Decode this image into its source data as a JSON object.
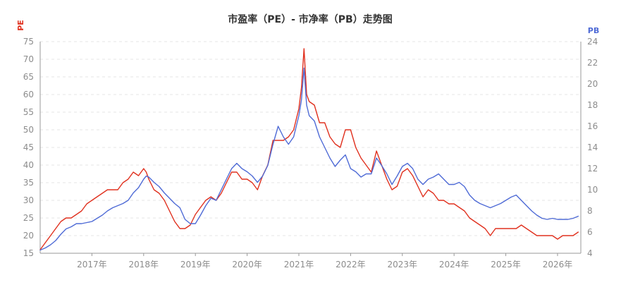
{
  "chart_data": {
    "type": "line",
    "title": "市盈率（PE）- 市净率（PB）走势图",
    "ylabel_left": "PE",
    "ylabel_right": "PB",
    "ylim_left": [
      15,
      75
    ],
    "ylim_right": [
      4,
      24
    ],
    "yticks_left": [
      15,
      20,
      25,
      30,
      35,
      40,
      45,
      50,
      55,
      60,
      65,
      70,
      75
    ],
    "yticks_right": [
      4,
      6,
      8,
      10,
      12,
      14,
      16,
      18,
      20,
      22,
      24
    ],
    "xlim": [
      2016.0,
      2026.45
    ],
    "xticks": [
      {
        "x": 2017.0,
        "label": "2017年"
      },
      {
        "x": 2018.0,
        "label": "2018年"
      },
      {
        "x": 2019.0,
        "label": "2019年"
      },
      {
        "x": 2020.0,
        "label": "2020年"
      },
      {
        "x": 2021.0,
        "label": "2021年"
      },
      {
        "x": 2022.0,
        "label": "2022年"
      },
      {
        "x": 2023.0,
        "label": "2023年"
      },
      {
        "x": 2024.0,
        "label": "2024年"
      },
      {
        "x": 2025.0,
        "label": "2025年"
      },
      {
        "x": 2026.0,
        "label": "2026年"
      }
    ],
    "grid": true,
    "series": [
      {
        "name": "PE",
        "axis": "left",
        "color": "#e0301e",
        "x": [
          2016.0,
          2016.1,
          2016.2,
          2016.3,
          2016.4,
          2016.5,
          2016.6,
          2016.7,
          2016.8,
          2016.9,
          2017.0,
          2017.1,
          2017.2,
          2017.3,
          2017.4,
          2017.5,
          2017.6,
          2017.7,
          2017.8,
          2017.9,
          2018.0,
          2018.05,
          2018.1,
          2018.2,
          2018.3,
          2018.4,
          2018.5,
          2018.6,
          2018.7,
          2018.8,
          2018.9,
          2019.0,
          2019.1,
          2019.2,
          2019.3,
          2019.4,
          2019.5,
          2019.6,
          2019.7,
          2019.8,
          2019.9,
          2020.0,
          2020.1,
          2020.2,
          2020.3,
          2020.4,
          2020.5,
          2020.6,
          2020.7,
          2020.8,
          2020.9,
          2021.0,
          2021.05,
          2021.1,
          2021.15,
          2021.2,
          2021.3,
          2021.4,
          2021.5,
          2021.6,
          2021.7,
          2021.8,
          2021.9,
          2022.0,
          2022.1,
          2022.2,
          2022.3,
          2022.4,
          2022.5,
          2022.6,
          2022.7,
          2022.8,
          2022.9,
          2023.0,
          2023.1,
          2023.2,
          2023.3,
          2023.4,
          2023.5,
          2023.6,
          2023.7,
          2023.8,
          2023.9,
          2024.0,
          2024.1,
          2024.2,
          2024.3,
          2024.4,
          2024.5,
          2024.6,
          2024.7,
          2024.8,
          2024.9,
          2025.0,
          2025.1,
          2025.2,
          2025.3,
          2025.4,
          2025.5,
          2025.6,
          2025.7,
          2025.8,
          2025.9,
          2026.0,
          2026.1,
          2026.2,
          2026.3,
          2026.4
        ],
        "values": [
          16,
          18,
          20,
          22,
          24,
          25,
          25,
          26,
          27,
          29,
          30,
          31,
          32,
          33,
          33,
          33,
          35,
          36,
          38,
          37,
          39,
          38,
          36,
          33,
          32,
          30,
          27,
          24,
          22,
          22,
          23,
          26,
          28,
          30,
          31,
          30,
          32,
          35,
          38,
          38,
          36,
          36,
          35,
          33,
          37,
          40,
          47,
          47,
          47,
          48,
          50,
          56,
          62,
          73,
          60,
          58,
          57,
          52,
          52,
          48,
          46,
          45,
          50,
          50,
          45,
          42,
          40,
          38,
          44,
          40,
          36,
          33,
          34,
          38,
          39,
          37,
          34,
          31,
          33,
          32,
          30,
          30,
          29,
          29,
          28,
          27,
          25,
          24,
          23,
          22,
          20,
          22,
          22,
          22,
          22,
          22,
          23,
          22,
          21,
          20,
          20,
          20,
          20,
          19,
          20,
          20,
          20,
          21
        ]
      },
      {
        "name": "PB",
        "axis": "right",
        "color": "#4f6bd6",
        "x": [
          2016.0,
          2016.1,
          2016.2,
          2016.3,
          2016.4,
          2016.5,
          2016.6,
          2016.7,
          2016.8,
          2016.9,
          2017.0,
          2017.1,
          2017.2,
          2017.3,
          2017.4,
          2017.5,
          2017.6,
          2017.7,
          2017.8,
          2017.9,
          2018.0,
          2018.05,
          2018.1,
          2018.2,
          2018.3,
          2018.4,
          2018.5,
          2018.6,
          2018.7,
          2018.8,
          2018.9,
          2019.0,
          2019.1,
          2019.2,
          2019.3,
          2019.4,
          2019.5,
          2019.6,
          2019.7,
          2019.8,
          2019.9,
          2020.0,
          2020.1,
          2020.2,
          2020.3,
          2020.4,
          2020.5,
          2020.6,
          2020.7,
          2020.8,
          2020.9,
          2021.0,
          2021.05,
          2021.1,
          2021.15,
          2021.2,
          2021.3,
          2021.4,
          2021.5,
          2021.6,
          2021.7,
          2021.8,
          2021.9,
          2022.0,
          2022.1,
          2022.2,
          2022.3,
          2022.4,
          2022.5,
          2022.6,
          2022.7,
          2022.8,
          2022.9,
          2023.0,
          2023.1,
          2023.2,
          2023.3,
          2023.4,
          2023.5,
          2023.6,
          2023.7,
          2023.8,
          2023.9,
          2024.0,
          2024.1,
          2024.2,
          2024.3,
          2024.4,
          2024.5,
          2024.6,
          2024.7,
          2024.8,
          2024.9,
          2025.0,
          2025.1,
          2025.2,
          2025.3,
          2025.4,
          2025.5,
          2025.6,
          2025.7,
          2025.8,
          2025.9,
          2026.0,
          2026.1,
          2026.2,
          2026.3,
          2026.4
        ],
        "values": [
          4.3,
          4.5,
          4.8,
          5.2,
          5.8,
          6.3,
          6.5,
          6.8,
          6.8,
          6.9,
          7.0,
          7.3,
          7.6,
          8.0,
          8.3,
          8.5,
          8.7,
          9.0,
          9.7,
          10.2,
          11.0,
          11.3,
          11.2,
          10.7,
          10.3,
          9.7,
          9.2,
          8.7,
          8.3,
          7.2,
          6.8,
          6.8,
          7.6,
          8.5,
          9.2,
          9.0,
          10.0,
          11.0,
          12.0,
          12.5,
          12.0,
          11.7,
          11.3,
          10.7,
          11.3,
          12.3,
          14.3,
          16.0,
          15.0,
          14.3,
          15.0,
          17.0,
          18.5,
          21.5,
          18.0,
          17.0,
          16.5,
          15.0,
          14.0,
          13.0,
          12.2,
          12.8,
          13.3,
          12.0,
          11.7,
          11.2,
          11.5,
          11.5,
          13.0,
          12.3,
          11.5,
          10.5,
          11.3,
          12.2,
          12.5,
          12.0,
          11.0,
          10.5,
          11.0,
          11.2,
          11.5,
          11.0,
          10.5,
          10.5,
          10.7,
          10.3,
          9.5,
          9.0,
          8.7,
          8.5,
          8.3,
          8.5,
          8.7,
          9.0,
          9.3,
          9.5,
          9.0,
          8.5,
          8.0,
          7.6,
          7.3,
          7.2,
          7.3,
          7.2,
          7.2,
          7.2,
          7.3,
          7.5
        ]
      }
    ]
  }
}
